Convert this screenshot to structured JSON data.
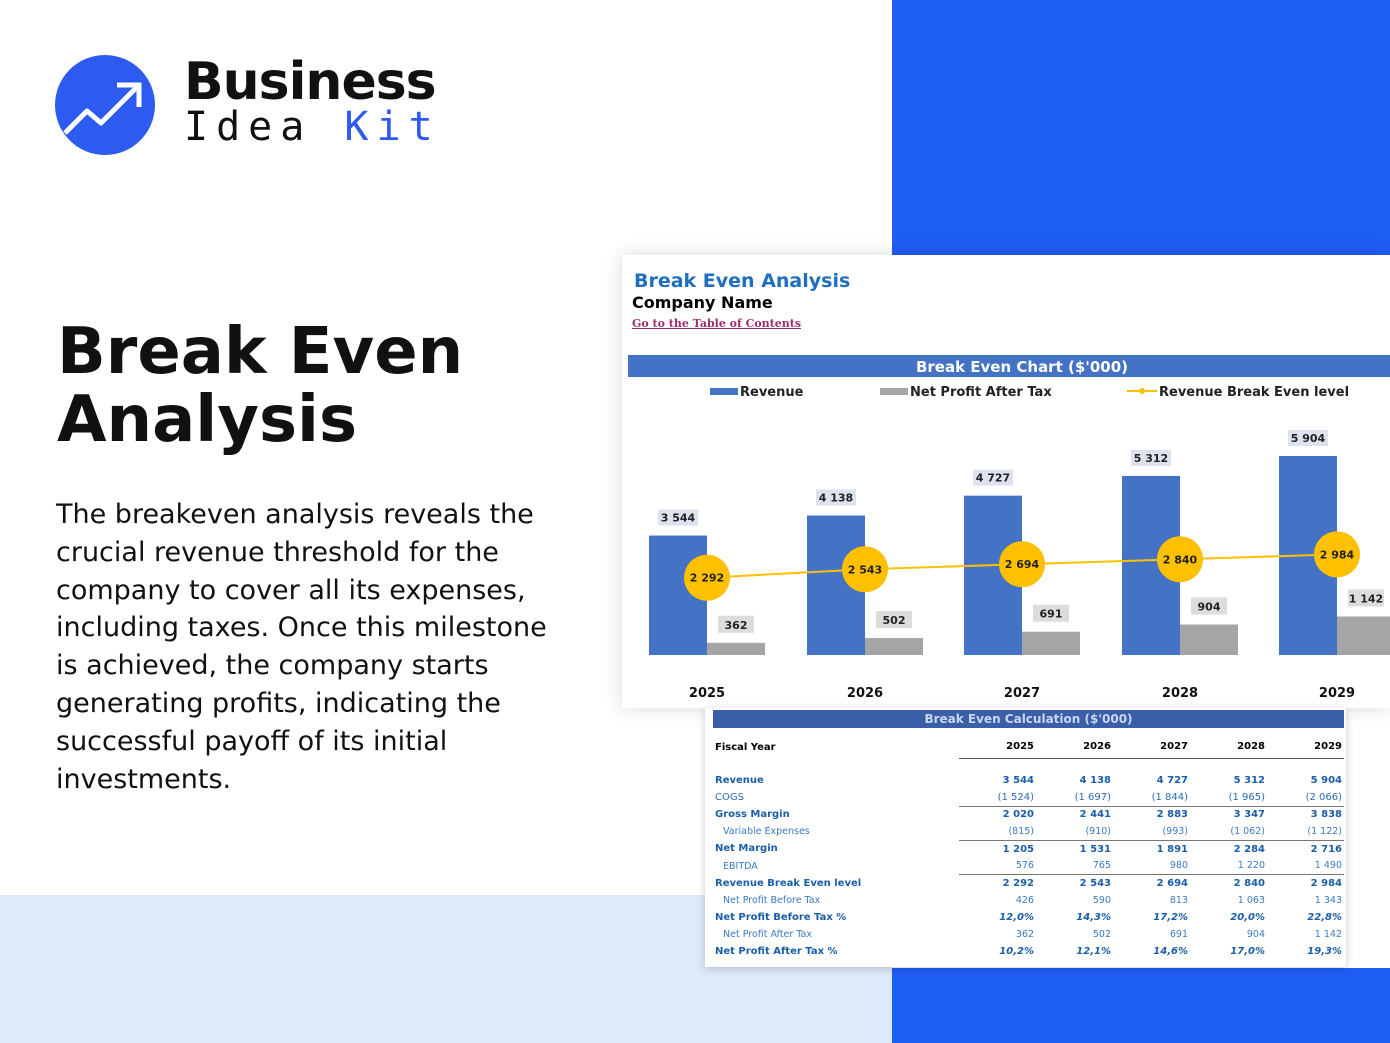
{
  "brand": {
    "line1": "Business",
    "line2a": "Idea",
    "line2b": "Kit",
    "color": "#2d5af0"
  },
  "hero": {
    "title": "Break Even Analysis",
    "description": "The breakeven analysis reveals the crucial revenue threshold for the company to cover all its expenses, including taxes. Once this milestone is achieved, the company starts generating profits, indicating the successful payoff of its initial investments."
  },
  "sheet": {
    "title": "Break Even Analysis",
    "company": "Company Name",
    "toc_link": "Go to the Table of Contents"
  },
  "chart_data": {
    "type": "bar",
    "title": "Break Even Chart ($'000)",
    "categories": [
      "2025",
      "2026",
      "2027",
      "2028",
      "2029"
    ],
    "series": [
      {
        "name": "Revenue",
        "type": "bar",
        "color": "#4472c4",
        "values": [
          3544,
          4138,
          4727,
          5312,
          5904
        ],
        "labels": [
          "3 544",
          "4 138",
          "4 727",
          "5 312",
          "5 904"
        ]
      },
      {
        "name": "Net Profit After Tax",
        "type": "bar",
        "color": "#a5a5a5",
        "values": [
          362,
          502,
          691,
          904,
          1142
        ],
        "labels": [
          "362",
          "502",
          "691",
          "904",
          "1 142"
        ]
      },
      {
        "name": "Revenue Break Even level",
        "type": "line",
        "color": "#ffc000",
        "values": [
          2292,
          2543,
          2694,
          2840,
          2984
        ],
        "labels": [
          "2 292",
          "2 543",
          "2 694",
          "2 840",
          "2 984"
        ]
      }
    ],
    "legend": "top",
    "grid": false
  },
  "table": {
    "title": "Break Even Calculation ($'000)",
    "header": "Fiscal Year",
    "years": [
      "2025",
      "2026",
      "2027",
      "2028",
      "2029"
    ],
    "rows": [
      {
        "label": "Revenue",
        "style": "b",
        "values": [
          "3 544",
          "4 138",
          "4 727",
          "5 312",
          "5 904"
        ]
      },
      {
        "label": "COGS",
        "style": "n",
        "values": [
          "(1 524)",
          "(1 697)",
          "(1 844)",
          "(1 965)",
          "(2 066)"
        ]
      },
      {
        "label": "Gross Margin",
        "style": "b line",
        "values": [
          "2 020",
          "2 441",
          "2 883",
          "3 347",
          "3 838"
        ]
      },
      {
        "label": "Variable Expenses",
        "style": "i",
        "values": [
          "(815)",
          "(910)",
          "(993)",
          "(1 062)",
          "(1 122)"
        ]
      },
      {
        "label": "Net Margin",
        "style": "b line",
        "values": [
          "1 205",
          "1 531",
          "1 891",
          "2 284",
          "2 716"
        ]
      },
      {
        "label": "EBITDA",
        "style": "i",
        "values": [
          "576",
          "765",
          "980",
          "1 220",
          "1 490"
        ]
      },
      {
        "label": "Revenue Break Even level",
        "style": "b line",
        "values": [
          "2 292",
          "2 543",
          "2 694",
          "2 840",
          "2 984"
        ]
      },
      {
        "label": "Net Profit Before Tax",
        "style": "i",
        "values": [
          "426",
          "590",
          "813",
          "1 063",
          "1 343"
        ]
      },
      {
        "label": "Net Profit Before Tax %",
        "style": "b p",
        "values": [
          "12,0%",
          "14,3%",
          "17,2%",
          "20,0%",
          "22,8%"
        ]
      },
      {
        "label": "Net Profit After Tax",
        "style": "i",
        "values": [
          "362",
          "502",
          "691",
          "904",
          "1 142"
        ]
      },
      {
        "label": "Net Profit After Tax %",
        "style": "b p",
        "values": [
          "10,2%",
          "12,1%",
          "14,6%",
          "17,0%",
          "19,3%"
        ]
      }
    ]
  }
}
